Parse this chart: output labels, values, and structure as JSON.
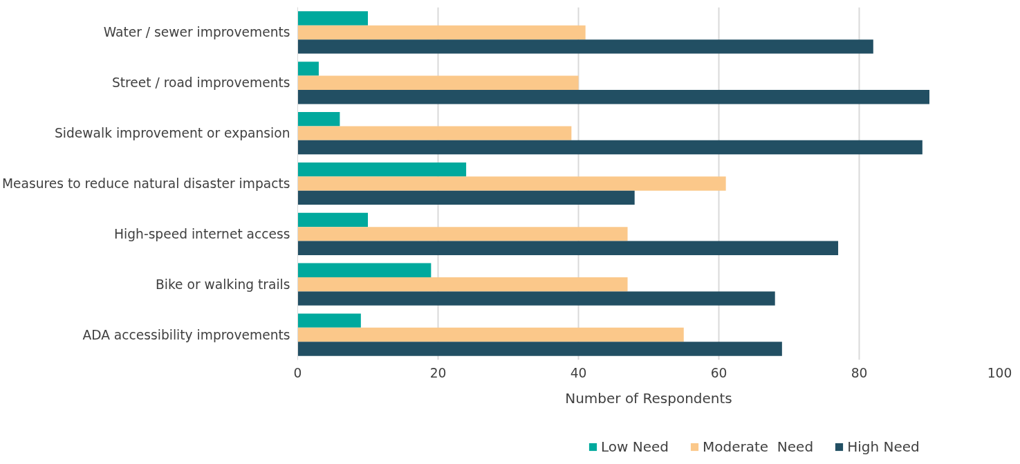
{
  "chart_data": {
    "type": "bar",
    "orientation": "horizontal",
    "xlabel": "Number of Respondents",
    "categories": [
      "Water / sewer improvements",
      "Street / road improvements",
      "Sidewalk improvement or expansion",
      "Measures to reduce natural disaster impacts",
      "High-speed internet access",
      "Bike or walking trails",
      "ADA accessibility improvements"
    ],
    "series": [
      {
        "name": "Low Need",
        "color": "#00a99d",
        "values": [
          10,
          3,
          6,
          24,
          10,
          19,
          9
        ]
      },
      {
        "name": "Moderate  Need",
        "color": "#fbc88a",
        "values": [
          41,
          40,
          39,
          61,
          47,
          47,
          55
        ]
      },
      {
        "name": "High Need",
        "color": "#224f63",
        "values": [
          82,
          90,
          89,
          48,
          77,
          68,
          69
        ]
      }
    ],
    "xlim": [
      0,
      100
    ],
    "xticks": [
      0,
      20,
      40,
      60,
      80,
      100
    ],
    "grid": "x",
    "legend": "bottom"
  }
}
